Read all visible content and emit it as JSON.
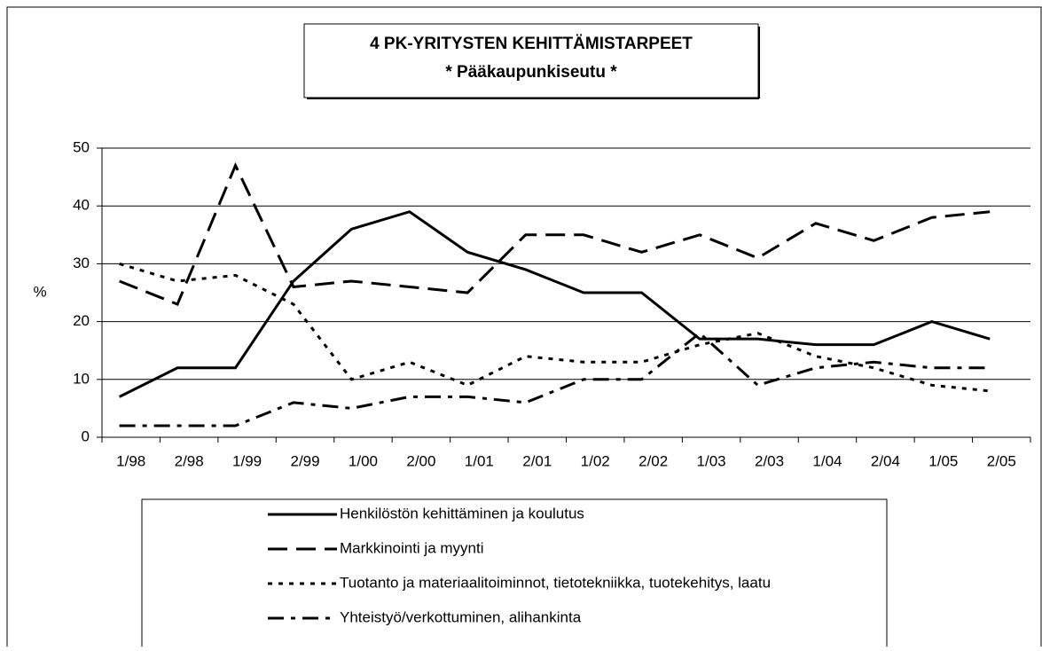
{
  "chart_data": {
    "type": "line",
    "title": "4 PK-YRITYSTEN KEHITTÄMISTARPEET",
    "subtitle": "* Pääkaupunkiseutu *",
    "y_label": "%",
    "categories": [
      "1/98",
      "2/98",
      "1/99",
      "2/99",
      "1/00",
      "2/00",
      "1/01",
      "2/01",
      "1/02",
      "2/02",
      "1/03",
      "2/03",
      "1/04",
      "2/04",
      "1/05",
      "2/05"
    ],
    "series": [
      {
        "name": "Henkilöstön kehittäminen ja koulutus",
        "color": "#000000",
        "dash": "solid",
        "values": [
          7,
          12,
          12,
          27,
          36,
          39,
          32,
          29,
          25,
          25,
          17,
          17,
          16,
          16,
          20,
          17
        ]
      },
      {
        "name": "Markkinointi ja myynti",
        "color": "#000000",
        "dash": "long",
        "values": [
          27,
          23,
          47,
          26,
          27,
          26,
          25,
          35,
          35,
          32,
          35,
          31,
          37,
          34,
          38,
          39
        ]
      },
      {
        "name": "Tuotanto ja materiaalitoiminnot, tietotekniikka, tuotekehitys, laatu",
        "color": "#000000",
        "dash": "dot",
        "values": [
          30,
          27,
          28,
          23,
          10,
          13,
          9,
          14,
          13,
          13,
          16,
          18,
          14,
          12,
          9,
          8
        ]
      },
      {
        "name": "Yhteistyö/verkottuminen, alihankinta",
        "color": "#000000",
        "dash": "dashdot",
        "values": [
          2,
          2,
          2,
          6,
          5,
          7,
          7,
          6,
          10,
          10,
          18,
          9,
          12,
          13,
          12,
          12
        ]
      }
    ],
    "ylim": [
      0,
      50
    ],
    "yticks": [
      0,
      10,
      20,
      30,
      40,
      50
    ],
    "grid": true
  }
}
